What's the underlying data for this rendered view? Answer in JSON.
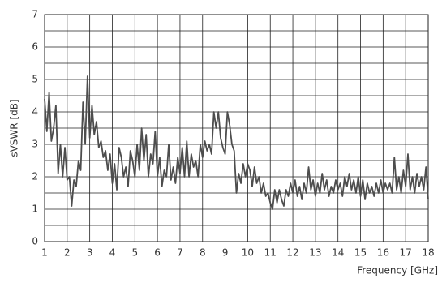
{
  "chart_data": {
    "type": "line",
    "x_label": "Frequency [GHz]",
    "y_label": "sVSWR [dB]",
    "x": [
      1,
      1.1,
      1.2,
      1.3,
      1.4,
      1.5,
      1.6,
      1.7,
      1.8,
      1.9,
      2,
      2.1,
      2.2,
      2.3,
      2.4,
      2.5,
      2.6,
      2.7,
      2.8,
      2.9,
      3,
      3.1,
      3.2,
      3.3,
      3.4,
      3.5,
      3.6,
      3.7,
      3.8,
      3.9,
      4,
      4.1,
      4.2,
      4.3,
      4.4,
      4.5,
      4.6,
      4.7,
      4.8,
      4.9,
      5,
      5.1,
      5.2,
      5.3,
      5.4,
      5.5,
      5.6,
      5.7,
      5.8,
      5.9,
      6,
      6.1,
      6.2,
      6.3,
      6.4,
      6.5,
      6.6,
      6.7,
      6.8,
      6.9,
      7,
      7.1,
      7.2,
      7.3,
      7.4,
      7.5,
      7.6,
      7.7,
      7.8,
      7.9,
      8,
      8.1,
      8.2,
      8.3,
      8.4,
      8.5,
      8.6,
      8.7,
      8.8,
      8.9,
      9,
      9.1,
      9.2,
      9.3,
      9.4,
      9.5,
      9.6,
      9.7,
      9.8,
      9.9,
      10,
      10.1,
      10.2,
      10.3,
      10.4,
      10.5,
      10.6,
      10.7,
      10.8,
      10.9,
      11,
      11.1,
      11.2,
      11.3,
      11.4,
      11.5,
      11.6,
      11.7,
      11.8,
      11.9,
      12,
      12.1,
      12.2,
      12.3,
      12.4,
      12.5,
      12.6,
      12.7,
      12.8,
      12.9,
      13,
      13.1,
      13.2,
      13.3,
      13.4,
      13.5,
      13.6,
      13.7,
      13.8,
      13.9,
      14,
      14.1,
      14.2,
      14.3,
      14.4,
      14.5,
      14.6,
      14.7,
      14.8,
      14.9,
      15,
      15.1,
      15.2,
      15.3,
      15.4,
      15.5,
      15.6,
      15.7,
      15.8,
      15.9,
      16,
      16.1,
      16.2,
      16.3,
      16.4,
      16.5,
      16.6,
      16.7,
      16.8,
      16.9,
      17,
      17.1,
      17.2,
      17.3,
      17.4,
      17.5,
      17.6,
      17.7,
      17.8,
      17.9,
      18
    ],
    "series": [
      {
        "color": "#4d4d4d",
        "values": [
          4.4,
          3.4,
          4.6,
          3.1,
          3.5,
          4.2,
          2.1,
          3.0,
          2.0,
          2.9,
          1.9,
          2.0,
          1.1,
          1.9,
          1.7,
          2.5,
          2.2,
          4.3,
          3.0,
          5.1,
          3.2,
          4.2,
          3.3,
          3.7,
          2.9,
          3.1,
          2.6,
          2.8,
          2.2,
          2.7,
          1.8,
          2.4,
          1.6,
          2.9,
          2.6,
          2.0,
          2.3,
          1.7,
          2.8,
          2.5,
          2.0,
          3.0,
          2.2,
          3.5,
          2.5,
          3.3,
          2.0,
          2.7,
          2.4,
          3.4,
          2.0,
          2.6,
          1.7,
          2.2,
          2.0,
          3.0,
          1.9,
          2.3,
          1.8,
          2.6,
          2.1,
          2.9,
          2.0,
          3.1,
          2.0,
          2.7,
          2.3,
          2.5,
          2.0,
          3.0,
          2.6,
          3.1,
          2.8,
          3.0,
          2.7,
          4.0,
          3.5,
          4.0,
          3.2,
          2.9,
          2.7,
          4.0,
          3.6,
          3.0,
          2.8,
          1.5,
          2.1,
          1.8,
          2.4,
          2.0,
          2.4,
          2.2,
          1.7,
          2.3,
          1.8,
          2.0,
          1.5,
          1.8,
          1.4,
          1.5,
          1.2,
          1.0,
          1.6,
          1.2,
          1.6,
          1.3,
          1.1,
          1.6,
          1.4,
          1.8,
          1.5,
          1.9,
          1.4,
          1.7,
          1.3,
          1.8,
          1.5,
          2.3,
          1.6,
          1.9,
          1.4,
          1.8,
          1.5,
          2.1,
          1.6,
          1.9,
          1.4,
          1.7,
          1.5,
          1.9,
          1.6,
          1.8,
          1.4,
          2.0,
          1.7,
          2.1,
          1.6,
          1.9,
          1.5,
          2.0,
          1.4,
          1.9,
          1.3,
          1.8,
          1.5,
          1.7,
          1.4,
          1.8,
          1.5,
          1.9,
          1.5,
          1.8,
          1.6,
          1.8,
          1.5,
          2.6,
          1.6,
          2.0,
          1.5,
          2.2,
          1.7,
          2.7,
          1.6,
          2.0,
          1.5,
          2.1,
          1.7,
          2.0,
          1.6,
          2.3,
          1.3
        ]
      }
    ],
    "xlim": [
      1,
      18
    ],
    "ylim": [
      0,
      7
    ],
    "xticks": [
      1,
      2,
      3,
      4,
      5,
      6,
      7,
      8,
      9,
      10,
      11,
      12,
      13,
      14,
      15,
      16,
      17,
      18
    ],
    "yticks": [
      0,
      1,
      2,
      3,
      4,
      5,
      6,
      7
    ],
    "grid": true
  }
}
